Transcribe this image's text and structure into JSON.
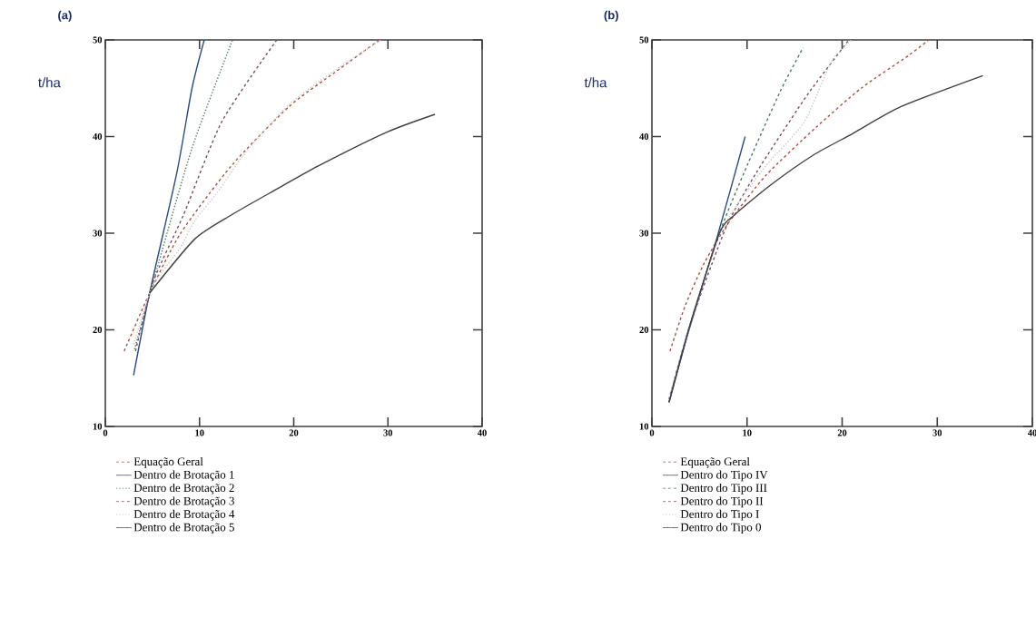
{
  "chart_data": [
    {
      "type": "line",
      "title": "(a)",
      "ylabel": "t/ha",
      "xlim": [
        0,
        40
      ],
      "ylim": [
        10,
        50
      ],
      "xticks": [
        0,
        10,
        20,
        30,
        40
      ],
      "yticks": [
        10,
        20,
        30,
        40,
        50
      ],
      "legend": "bottom",
      "series": [
        {
          "name": "Equação Geral",
          "color": "#b0503a",
          "line_style": "dashed",
          "x": [
            2.0,
            4.7,
            8.0,
            13.4,
            19.5,
            24.3,
            29.1
          ],
          "values": [
            17.8,
            23.8,
            30.0,
            37.0,
            43.1,
            46.6,
            50
          ]
        },
        {
          "name": "Dentro de Brotação 1",
          "color": "#2a4a80",
          "line_style": "solid",
          "x": [
            3.0,
            4.7,
            7.6,
            9.2,
            10.5
          ],
          "values": [
            15.3,
            23.8,
            36.3,
            45.0,
            50
          ]
        },
        {
          "name": "Dentro de Brotação 2",
          "color": "#4a7a5a",
          "line_style": "dotted",
          "x": [
            3.1,
            5.1,
            9.2,
            13.5
          ],
          "values": [
            18.0,
            25.0,
            38.8,
            50
          ]
        },
        {
          "name": "Dentro de Brotação 3",
          "color": "#7a4a6a",
          "line_style": "dashed",
          "x": [
            3.2,
            5.1,
            8.3,
            12.4,
            18.2
          ],
          "values": [
            17.8,
            25.0,
            31.9,
            41.6,
            50
          ]
        },
        {
          "name": "Dentro de Brotação 4",
          "color": "#c8c8c8",
          "line_style": "dotted",
          "x": [
            3.0,
            5.0,
            7.9,
            9.5,
            11.8,
            15.0,
            19.5,
            24.3,
            29.3
          ],
          "values": [
            18.5,
            24.5,
            28.4,
            31.3,
            34.1,
            38.5,
            43.3,
            46.8,
            50
          ]
        },
        {
          "name": "Dentro de Brotação 5",
          "color": "#404040",
          "line_style": "solid",
          "x": [
            4.7,
            9.5,
            13.4,
            17.9,
            22.7,
            30.0,
            35.0
          ],
          "values": [
            23.8,
            29.4,
            31.9,
            34.4,
            37.0,
            40.5,
            42.3
          ]
        }
      ]
    },
    {
      "type": "line",
      "title": "(b)",
      "ylabel": "t/ha",
      "xlim": [
        0,
        40
      ],
      "ylim": [
        10,
        50
      ],
      "xticks": [
        0,
        10,
        20,
        30,
        40
      ],
      "yticks": [
        10,
        20,
        30,
        40,
        50
      ],
      "legend": "bottom",
      "series": [
        {
          "name": "Equação Geral",
          "color": "#b0503a",
          "line_style": "dashed",
          "x": [
            1.9,
            3.5,
            5.5,
            8.0,
            12.0,
            17.2,
            22.0,
            27.0,
            29.1
          ],
          "values": [
            17.8,
            22.5,
            26.9,
            31.0,
            36.0,
            40.9,
            45.0,
            48.4,
            50
          ]
        },
        {
          "name": "Dentro do Tipo IV",
          "color": "#2a4a80",
          "line_style": "solid",
          "x": [
            1.8,
            3.9,
            6.8,
            9.8
          ],
          "values": [
            12.5,
            20.0,
            29.4,
            40.0
          ]
        },
        {
          "name": "Dentro do Tipo III",
          "color": "#4a7a5a",
          "line_style": "dashed",
          "x": [
            1.8,
            4.0,
            7.1,
            9.7,
            13.5,
            15.9
          ],
          "values": [
            12.5,
            20.5,
            30.0,
            36.3,
            44.7,
            49.2
          ]
        },
        {
          "name": "Dentro do Tipo II",
          "color": "#7a4a6a",
          "line_style": "dashed",
          "x": [
            1.8,
            4.0,
            7.8,
            11.0,
            15.7,
            17.3,
            20.7
          ],
          "values": [
            12.8,
            20.5,
            30.6,
            36.3,
            43.4,
            45.6,
            50
          ]
        },
        {
          "name": "Dentro do Tipo I",
          "color": "#c8c8c8",
          "line_style": "dotted",
          "x": [
            1.8,
            4.0,
            7.0,
            9.0,
            12.0,
            16.0,
            18.9,
            21.0
          ],
          "values": [
            13.0,
            20.5,
            29.6,
            33.0,
            37.0,
            41.5,
            47.8,
            50
          ]
        },
        {
          "name": "Dentro do Tipo 0",
          "color": "#404040",
          "line_style": "solid",
          "x": [
            1.8,
            4.0,
            7.1,
            8.7,
            12.5,
            17.0,
            21.1,
            26.2,
            34.8
          ],
          "values": [
            12.5,
            20.5,
            30.0,
            31.9,
            35.0,
            38.1,
            40.3,
            43.1,
            46.3
          ]
        }
      ]
    }
  ]
}
